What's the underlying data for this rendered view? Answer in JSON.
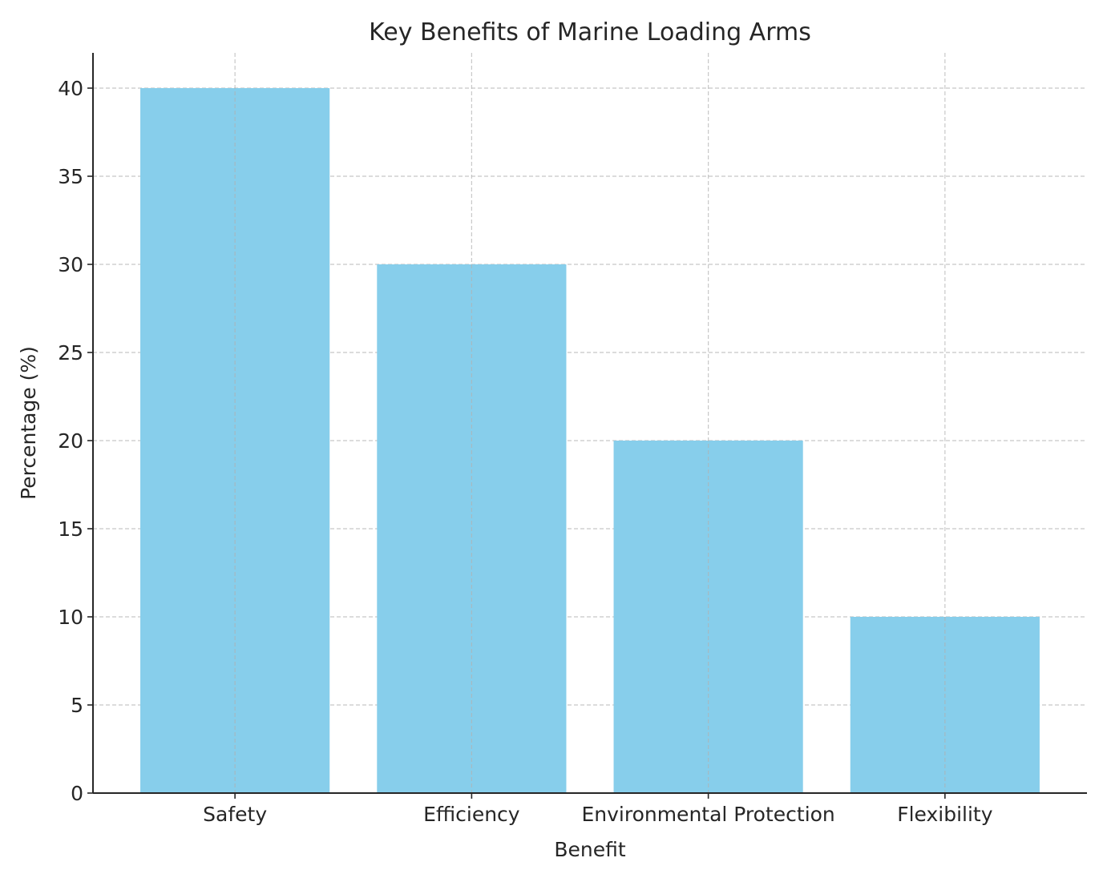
{
  "chart_data": {
    "type": "bar",
    "title": "Key Benefits of Marine Loading Arms",
    "xlabel": "Benefit",
    "ylabel": "Percentage (%)",
    "categories": [
      "Safety",
      "Efficiency",
      "Environmental Protection",
      "Flexibility"
    ],
    "values": [
      40,
      30,
      20,
      10
    ],
    "ylim": [
      0,
      42
    ],
    "yticks": [
      0,
      5,
      10,
      15,
      20,
      25,
      30,
      35,
      40
    ],
    "grid": true,
    "bar_color": "#87CEEB"
  }
}
